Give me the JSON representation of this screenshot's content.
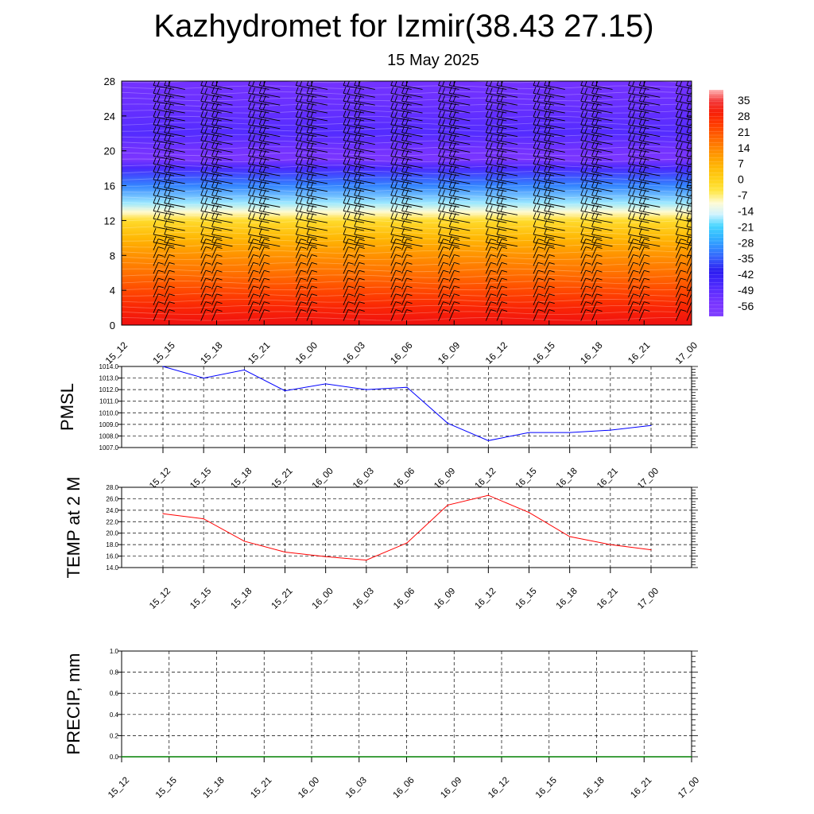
{
  "title": "Kazhydromet for Izmir(38.43 27.15)",
  "subtitle": "15 May 2025",
  "chart_data": [
    {
      "type": "heatmap",
      "title": "",
      "x_categories": [
        "15_12",
        "15_15",
        "15_18",
        "15_21",
        "16_00",
        "16_03",
        "16_06",
        "16_09",
        "16_12",
        "16_15",
        "16_18",
        "16_21",
        "17_00"
      ],
      "y_ticks": [
        "0",
        "4",
        "8",
        "12",
        "16",
        "20",
        "24",
        "28"
      ],
      "ylim": [
        0,
        28
      ],
      "colorbar_labels": [
        "35",
        "28",
        "21",
        "14",
        "7",
        "0",
        "-7",
        "-14",
        "-21",
        "-28",
        "-35",
        "-42",
        "-49",
        "-56"
      ],
      "colorbar_range": [
        -63,
        42
      ],
      "temperature_profile": [
        {
          "y": 0,
          "value": 35
        },
        {
          "y": 2,
          "value": 30
        },
        {
          "y": 4,
          "value": 24
        },
        {
          "y": 6,
          "value": 18
        },
        {
          "y": 8,
          "value": 13
        },
        {
          "y": 10,
          "value": 6
        },
        {
          "y": 12,
          "value": -2
        },
        {
          "y": 13,
          "value": -10
        },
        {
          "y": 14,
          "value": -18
        },
        {
          "y": 16,
          "value": -32
        },
        {
          "y": 18,
          "value": -48
        },
        {
          "y": 19,
          "value": -58
        },
        {
          "y": 20,
          "value": -55
        },
        {
          "y": 22,
          "value": -50
        },
        {
          "y": 24,
          "value": -52
        },
        {
          "y": 26,
          "value": -54
        },
        {
          "y": 28,
          "value": -55
        }
      ],
      "grid": false,
      "wind_barbs": true
    },
    {
      "type": "line",
      "ylabel": "PMSL",
      "categories": [
        "15_12",
        "15_15",
        "15_18",
        "15_21",
        "16_00",
        "16_03",
        "16_06",
        "16_09",
        "16_12",
        "16_15",
        "16_18",
        "16_21",
        "17_00"
      ],
      "y_ticks": [
        "1007.0",
        "1008.0",
        "1009.0",
        "1010.0",
        "1011.0",
        "1012.0",
        "1013.0",
        "1014.0"
      ],
      "ylim": [
        1007,
        1014
      ],
      "series": [
        {
          "values": [
            1014.0,
            1013.0,
            1013.7,
            1011.9,
            1012.5,
            1012.0,
            1012.2,
            1009.1,
            1007.6,
            1008.3,
            1008.3,
            1008.5,
            1008.9
          ],
          "color": "#0000ff"
        }
      ],
      "grid": true
    },
    {
      "type": "line",
      "ylabel": "TEMP at 2 M",
      "categories": [
        "15_12",
        "15_15",
        "15_18",
        "15_21",
        "16_00",
        "16_03",
        "16_06",
        "16_09",
        "16_12",
        "16_15",
        "16_18",
        "16_21",
        "17_00"
      ],
      "y_ticks": [
        "14.0",
        "16.0",
        "18.0",
        "20.0",
        "22.0",
        "24.0",
        "26.0",
        "28.0"
      ],
      "ylim": [
        14,
        28
      ],
      "series": [
        {
          "values": [
            23.4,
            22.5,
            18.6,
            16.7,
            15.9,
            15.3,
            18.3,
            24.9,
            26.6,
            23.6,
            19.4,
            18.0,
            17.1
          ],
          "color": "#ff0000"
        }
      ],
      "grid": true
    },
    {
      "type": "line",
      "ylabel": "PRECIP, mm",
      "categories": [
        "15_12",
        "15_15",
        "15_18",
        "15_21",
        "16_00",
        "16_03",
        "16_06",
        "16_09",
        "16_12",
        "16_15",
        "16_18",
        "16_21",
        "17_00"
      ],
      "y_ticks": [
        "0.0",
        "0.2",
        "0.4",
        "0.6",
        "0.8",
        "1.0"
      ],
      "ylim": [
        0,
        1
      ],
      "series": [
        {
          "values": [
            0,
            0,
            0,
            0,
            0,
            0,
            0,
            0,
            0,
            0,
            0,
            0,
            0
          ],
          "color": "#008000"
        }
      ],
      "grid": true
    }
  ]
}
